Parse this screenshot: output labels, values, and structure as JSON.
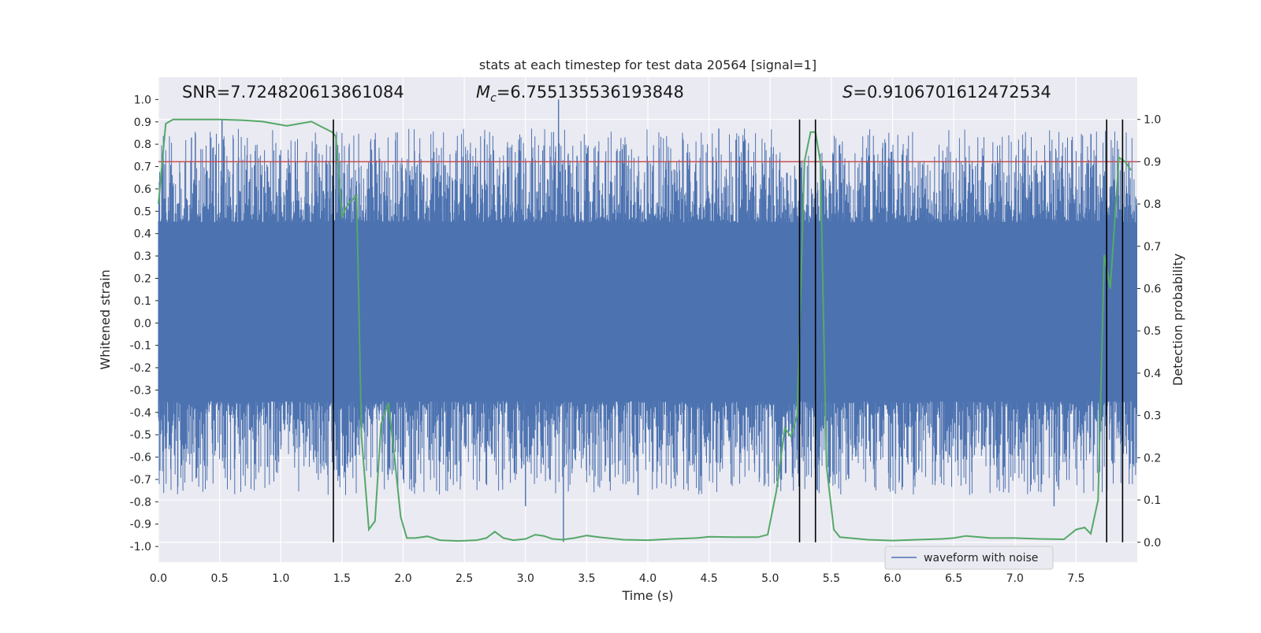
{
  "chart_data": {
    "type": "line",
    "title": "stats at each timestep for test data 20564 [signal=1]",
    "xlabel": "Time (s)",
    "ylabel": "Whitened strain",
    "y2label": "Detection probability",
    "xlim": [
      0.0,
      8.0
    ],
    "ylim": [
      -1.07,
      1.1
    ],
    "y2lim": [
      -0.047,
      1.1
    ],
    "x_ticks": [
      "0.0",
      "0.5",
      "1.0",
      "1.5",
      "2.0",
      "2.5",
      "3.0",
      "3.5",
      "4.0",
      "4.5",
      "5.0",
      "5.5",
      "6.0",
      "6.5",
      "7.0",
      "7.5"
    ],
    "y_ticks": [
      "-1.0",
      "-0.9",
      "-0.8",
      "-0.7",
      "-0.6",
      "-0.5",
      "-0.4",
      "-0.3",
      "-0.2",
      "-0.1",
      "0.0",
      "0.1",
      "0.2",
      "0.3",
      "0.4",
      "0.5",
      "0.6",
      "0.7",
      "0.8",
      "0.9",
      "1.0"
    ],
    "y2_ticks": [
      "0.0",
      "0.1",
      "0.2",
      "0.3",
      "0.4",
      "0.5",
      "0.6",
      "0.7",
      "0.8",
      "0.9",
      "1.0"
    ],
    "grid": true,
    "legend": {
      "location": "lower right",
      "entries": [
        "waveform with noise"
      ]
    },
    "annotations": {
      "snr": "SNR=7.724820613861084",
      "mc_symbol": "M",
      "mc_sub": "c",
      "mc_value": "=6.755135536193848",
      "s_symbol": "S",
      "s_value": "=0.9106701612472534"
    },
    "threshold": {
      "axis": "y2",
      "value": 0.9,
      "color": "#c44e52"
    },
    "vertical_lines_x": [
      1.43,
      5.24,
      5.37,
      7.75,
      7.88
    ],
    "waveform": {
      "name": "waveform with noise",
      "color": "#4c72b0",
      "t_range": [
        0.0,
        8.0
      ],
      "core_band": [
        -0.35,
        0.45
      ],
      "peak_spikes": [
        {
          "x": 0.52,
          "y": 0.91
        },
        {
          "x": 0.27,
          "y": 0.83
        },
        {
          "x": 3.27,
          "y": 1.0
        },
        {
          "x": 3.31,
          "y": -0.98
        },
        {
          "x": 3.92,
          "y": -0.77
        },
        {
          "x": 4.58,
          "y": 0.87
        },
        {
          "x": 4.72,
          "y": 0.82
        },
        {
          "x": 1.45,
          "y": 0.84
        },
        {
          "x": 2.03,
          "y": 0.68
        },
        {
          "x": 7.32,
          "y": -0.82
        },
        {
          "x": 3.0,
          "y": -0.82
        }
      ]
    },
    "series": [
      {
        "name": "Detection probability",
        "axis": "y2",
        "color": "#55a868",
        "x": [
          0.0,
          0.06,
          0.12,
          0.2,
          0.3,
          0.5,
          0.7,
          0.85,
          0.95,
          1.05,
          1.15,
          1.25,
          1.35,
          1.42,
          1.45,
          1.5,
          1.55,
          1.62,
          1.66,
          1.72,
          1.77,
          1.82,
          1.88,
          1.93,
          1.98,
          2.03,
          2.1,
          2.2,
          2.3,
          2.45,
          2.6,
          2.68,
          2.75,
          2.82,
          2.9,
          3.0,
          3.08,
          3.15,
          3.22,
          3.3,
          3.4,
          3.5,
          3.6,
          3.8,
          4.0,
          4.2,
          4.4,
          4.5,
          4.7,
          4.9,
          4.98,
          5.05,
          5.12,
          5.17,
          5.22,
          5.28,
          5.33,
          5.37,
          5.41,
          5.46,
          5.52,
          5.57,
          5.65,
          5.8,
          6.0,
          6.2,
          6.4,
          6.5,
          6.6,
          6.8,
          7.0,
          7.2,
          7.4,
          7.5,
          7.57,
          7.62,
          7.68,
          7.73,
          7.78,
          7.85,
          7.9,
          7.95
        ],
        "y": [
          0.8,
          0.99,
          1.0,
          1.0,
          1.0,
          1.0,
          0.998,
          0.995,
          0.99,
          0.985,
          0.99,
          0.995,
          0.98,
          0.97,
          0.96,
          0.77,
          0.8,
          0.82,
          0.25,
          0.03,
          0.05,
          0.28,
          0.33,
          0.2,
          0.06,
          0.01,
          0.01,
          0.014,
          0.005,
          0.003,
          0.005,
          0.01,
          0.025,
          0.01,
          0.005,
          0.008,
          0.018,
          0.015,
          0.008,
          0.006,
          0.01,
          0.016,
          0.012,
          0.006,
          0.005,
          0.008,
          0.01,
          0.013,
          0.012,
          0.012,
          0.018,
          0.12,
          0.27,
          0.25,
          0.3,
          0.9,
          0.97,
          0.97,
          0.9,
          0.18,
          0.03,
          0.012,
          0.01,
          0.006,
          0.004,
          0.006,
          0.008,
          0.01,
          0.015,
          0.01,
          0.01,
          0.008,
          0.007,
          0.03,
          0.035,
          0.02,
          0.1,
          0.68,
          0.6,
          0.91,
          0.9,
          0.88
        ]
      }
    ]
  }
}
